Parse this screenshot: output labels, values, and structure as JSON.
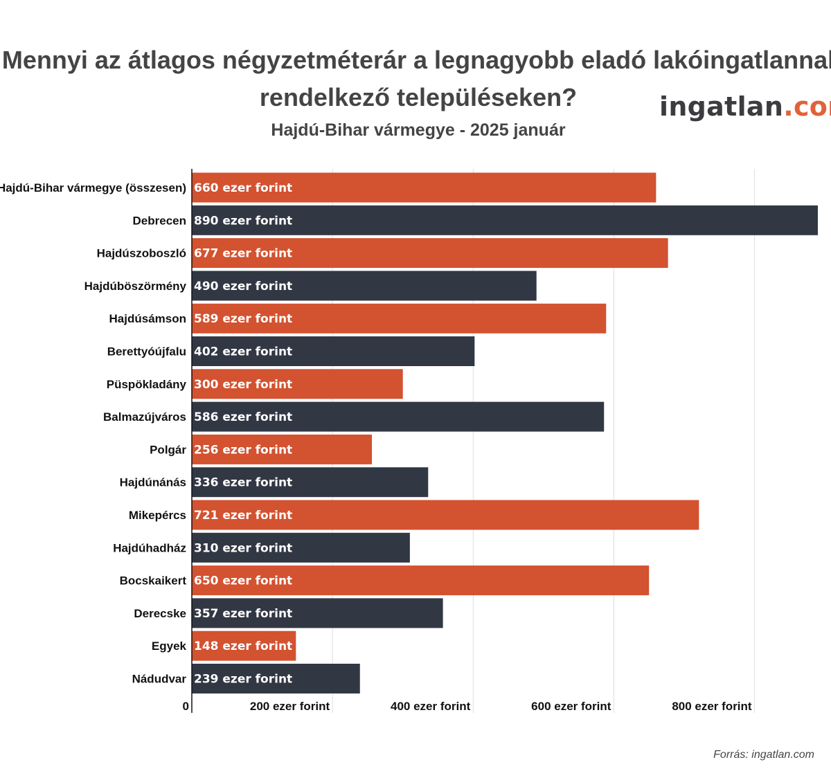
{
  "header": {
    "title_line1": "Mennyi az átlagos négyzetméterár a legnagyobb eladó lakóingatlannal",
    "title_line2": "rendelkező településeken?",
    "subtitle": "Hajdú-Bihar vármegye - 2025 január"
  },
  "logo": {
    "main": "ingatlan",
    "accent": ".com"
  },
  "footer": {
    "source": "Forrás: ingatlan.com"
  },
  "colors": {
    "orange": "#d35230",
    "dark": "#323744",
    "grid": "#dddddd",
    "axis": "#111111"
  },
  "chart_data": {
    "type": "bar",
    "orientation": "horizontal",
    "title": "Mennyi az átlagos négyzetméterár a legnagyobb eladó lakóingatlannal rendelkező településeken?",
    "subtitle": "Hajdú-Bihar vármegye - 2025 január",
    "categories": [
      "Hajdú-Bihar vármegye (összesen)",
      "Debrecen",
      "Hajdúszoboszló",
      "Hajdúböszörmény",
      "Hajdúsámson",
      "Berettyóújfalu",
      "Püspökladány",
      "Balmazújváros",
      "Polgár",
      "Hajdúnánás",
      "Mikepércs",
      "Hajdúhadház",
      "Bocskaikert",
      "Derecske",
      "Egyek",
      "Nádudvar"
    ],
    "values": [
      660,
      890,
      677,
      490,
      589,
      402,
      300,
      586,
      256,
      336,
      721,
      310,
      650,
      357,
      148,
      239
    ],
    "value_labels": [
      "660 ezer forint",
      "890 ezer forint",
      "677 ezer forint",
      "490 ezer forint",
      "589 ezer forint",
      "402 ezer forint",
      "300 ezer forint",
      "586 ezer forint",
      "256 ezer forint",
      "336 ezer forint",
      "721 ezer forint",
      "310 ezer forint",
      "650 ezer forint",
      "357 ezer forint",
      "148 ezer forint",
      "239 ezer forint"
    ],
    "bar_colors": [
      "orange",
      "dark",
      "orange",
      "dark",
      "orange",
      "dark",
      "orange",
      "dark",
      "orange",
      "dark",
      "orange",
      "dark",
      "orange",
      "dark",
      "orange",
      "dark"
    ],
    "x_ticks": [
      0,
      200,
      400,
      600,
      800
    ],
    "x_tick_labels": [
      "0",
      "200 ezer forint",
      "400 ezer forint",
      "600 ezer forint",
      "800 ezer forint"
    ],
    "xlim": [
      0,
      890
    ],
    "grid": true,
    "legend": "none"
  }
}
